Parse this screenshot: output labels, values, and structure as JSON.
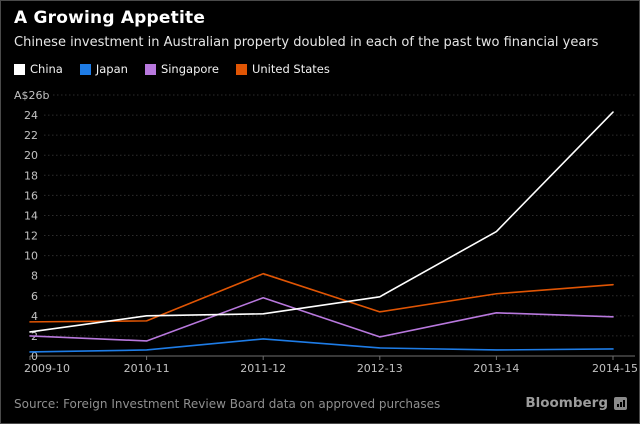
{
  "header": {
    "title": "A Growing Appetite",
    "subtitle": "Chinese investment in Australian property doubled in each of the past two financial years"
  },
  "chart_data": {
    "type": "line",
    "categories": [
      "2009-10",
      "2010-11",
      "2011-12",
      "2012-13",
      "2013-14",
      "2014-15"
    ],
    "series": [
      {
        "name": "China",
        "color": "#ffffff",
        "values": [
          2.4,
          4.0,
          4.2,
          5.9,
          12.4,
          24.3
        ]
      },
      {
        "name": "Japan",
        "color": "#1e7ce6",
        "values": [
          0.4,
          0.6,
          1.7,
          0.8,
          0.6,
          0.7
        ]
      },
      {
        "name": "Singapore",
        "color": "#b878dd",
        "values": [
          2.0,
          1.5,
          5.8,
          1.9,
          4.3,
          3.9
        ]
      },
      {
        "name": "United States",
        "color": "#e05504",
        "values": [
          3.4,
          3.5,
          8.2,
          4.4,
          6.2,
          7.1
        ]
      }
    ],
    "ylabel_top": "A$26b",
    "yticks": [
      0,
      2,
      4,
      6,
      8,
      10,
      12,
      14,
      16,
      18,
      20,
      22,
      24
    ],
    "ylim": [
      0,
      26
    ],
    "grid": "dotted-horizontal",
    "legend_position": "top",
    "colors": {
      "background": "#000000",
      "gridline": "#2d2d2d",
      "axis_line": "#707070",
      "axis_text": "#c2c2c2"
    }
  },
  "footer": {
    "source": "Source: Foreign Investment Review Board data on approved purchases",
    "brand": "Bloomberg"
  }
}
